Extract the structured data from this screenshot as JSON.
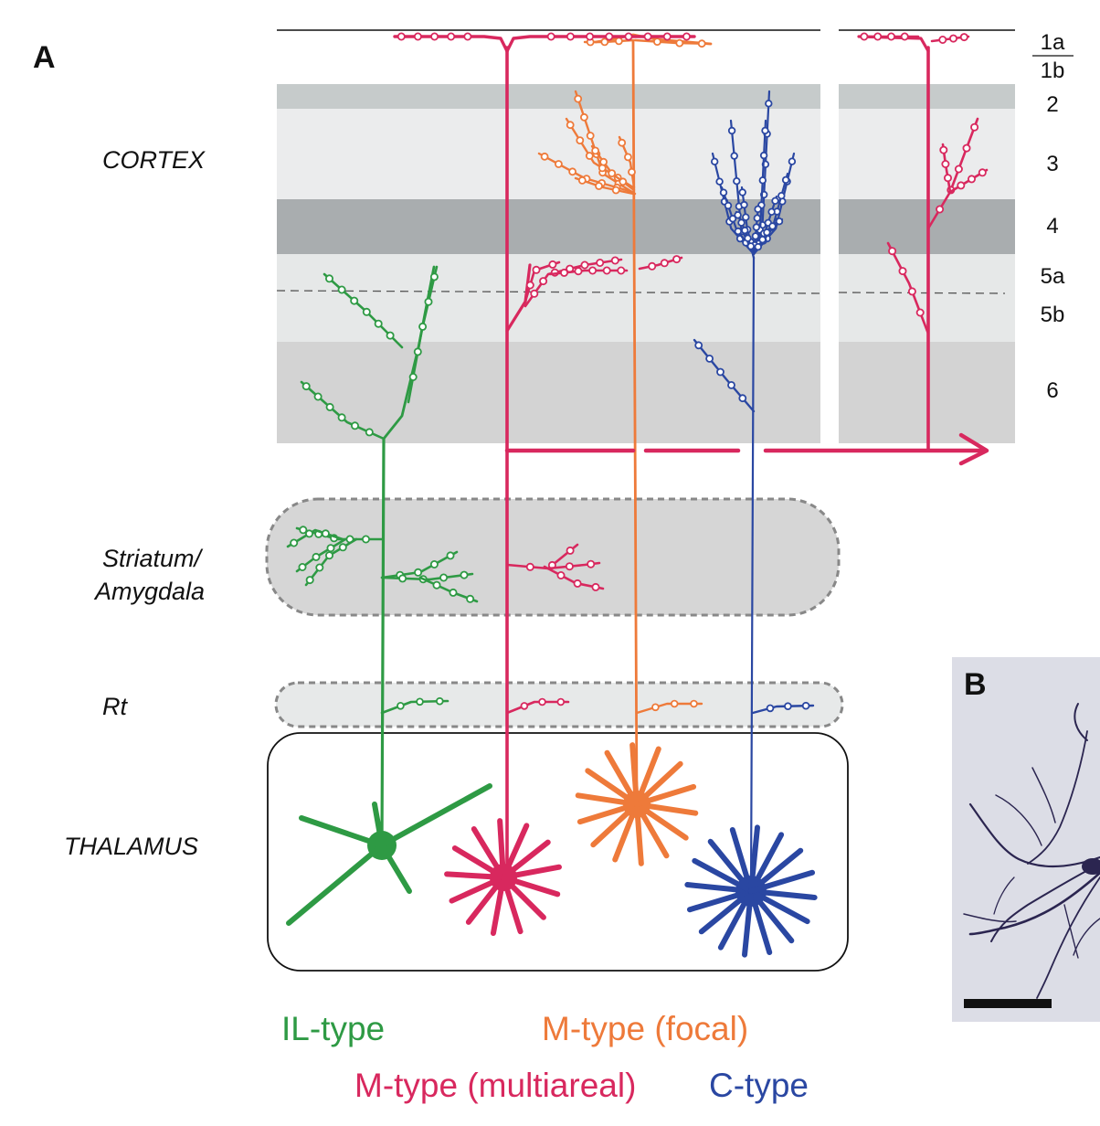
{
  "panels": {
    "a": "A",
    "b": "B"
  },
  "regions": {
    "cortex": "CORTEX",
    "striatum_line1": "Striatum/",
    "striatum_line2": "Amygdala",
    "rt": "Rt",
    "thalamus": "THALAMUS"
  },
  "layers": [
    "1a",
    "1b",
    "2",
    "3",
    "4",
    "5a",
    "5b",
    "6"
  ],
  "legend": {
    "il": "IL-type",
    "m_focal": "M-type (focal)",
    "m_multi": "M-type (multiareal)",
    "c": "C-type"
  },
  "colors": {
    "il": "#2e9a44",
    "m_multi": "#d8285e",
    "m_focal": "#ee7a3a",
    "c": "#2a47a2"
  }
}
